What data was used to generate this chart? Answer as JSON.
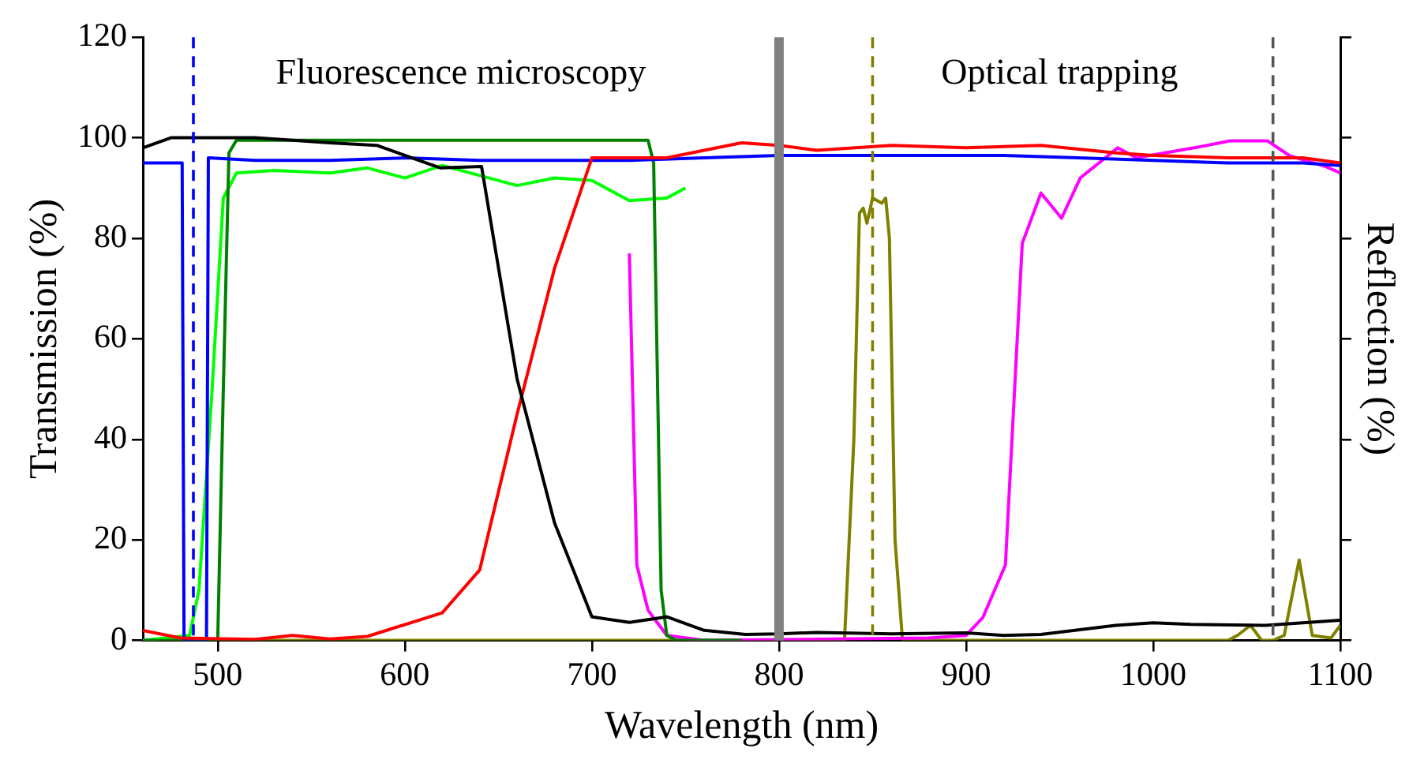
{
  "chart_data": {
    "type": "line",
    "xlabel": "Wavelength (nm)",
    "ylabel": "Transmission (%)",
    "y2label": "Reflection (%)",
    "xlim": [
      460,
      1100
    ],
    "xticks": [
      500,
      600,
      700,
      800,
      900,
      1000,
      1100
    ],
    "ylim": [
      0,
      120
    ],
    "yticks": [
      0,
      20,
      40,
      60,
      80,
      100,
      120
    ],
    "grid": false,
    "legend": false,
    "marker": "none",
    "line_style": "solid",
    "annotations": [
      "Fluorescence microscopy",
      "Optical trapping"
    ],
    "ref_lines": [
      {
        "axis": "x",
        "value": 487,
        "color": "#0000ff",
        "line_style": "dashed"
      },
      {
        "axis": "x",
        "value": 800,
        "color": "#808080",
        "line_style": "solid"
      },
      {
        "axis": "x",
        "value": 850,
        "color": "#808000",
        "line_style": "dashed"
      },
      {
        "axis": "x",
        "value": 1064,
        "color": "#555555",
        "line_style": "dashed"
      }
    ],
    "series": [
      {
        "color": "#000000",
        "x": [
          460,
          475,
          520,
          560,
          585,
          619,
          641,
          660,
          680,
          700,
          720,
          740,
          760,
          782,
          800,
          820,
          860,
          900,
          920,
          940,
          980,
          1000,
          1020,
          1060,
          1080,
          1100
        ],
        "values": [
          98,
          100,
          100,
          99,
          98.5,
          94,
          94.3,
          52,
          23.4,
          4.7,
          3.6,
          4.7,
          2,
          1.2,
          1.3,
          1.6,
          1.3,
          1.5,
          1,
          1.2,
          3,
          3.5,
          3.2,
          3,
          3.5,
          4
        ]
      },
      {
        "color": "#ff0000",
        "x": [
          460,
          480,
          520,
          540,
          560,
          580,
          620,
          640,
          660,
          680,
          700,
          720,
          740,
          760,
          780,
          800,
          820,
          860,
          900,
          940,
          980,
          1000,
          1040,
          1080,
          1100
        ],
        "values": [
          2,
          0.5,
          0.2,
          1,
          0.3,
          0.8,
          5.5,
          14,
          45,
          74,
          96,
          96,
          96,
          97.5,
          99,
          98.5,
          97.5,
          98.5,
          98,
          98.5,
          97,
          96.5,
          96,
          96,
          95
        ]
      },
      {
        "color": "#0000ff",
        "x": [
          460,
          481,
          482,
          494,
          495,
          520,
          560,
          600,
          640,
          680,
          720,
          760,
          800,
          840,
          880,
          920,
          960,
          1000,
          1040,
          1080,
          1100
        ],
        "values": [
          95,
          95,
          0,
          0,
          96,
          95.5,
          95.5,
          96,
          95.5,
          95.5,
          95.5,
          96,
          96.5,
          96.5,
          96.5,
          96.5,
          96,
          95.5,
          95,
          95,
          94.5
        ]
      },
      {
        "color": "#008000",
        "x": [
          460,
          500,
          503,
          506,
          510,
          540,
          580,
          620,
          660,
          700,
          730,
          733,
          737,
          740,
          745,
          780
        ],
        "values": [
          0,
          0,
          50,
          97,
          99.5,
          99.5,
          99.5,
          99.5,
          99.5,
          99.5,
          99.5,
          95,
          10,
          1,
          0,
          0
        ]
      },
      {
        "color": "#00ff00",
        "x": [
          460,
          485,
          490,
          497,
          503,
          510,
          530,
          560,
          580,
          600,
          620,
          640,
          660,
          680,
          700,
          720,
          740,
          750
        ],
        "values": [
          0,
          1,
          10,
          50,
          88,
          93,
          93.5,
          93,
          94,
          92,
          94.5,
          92.5,
          90.5,
          92,
          91.5,
          87.5,
          88,
          90
        ]
      },
      {
        "color": "#ff00ff",
        "x": [
          720,
          724,
          730,
          740,
          760,
          880,
          900,
          909,
          921,
          930,
          940,
          951,
          961,
          981,
          991,
          1022,
          1041,
          1061,
          1073,
          1092,
          1100
        ],
        "values": [
          77,
          15,
          6,
          1,
          0,
          0.5,
          1,
          4.6,
          15,
          79,
          89,
          84,
          92,
          98,
          96,
          98,
          99.4,
          99.4,
          96.4,
          94.3,
          93
        ]
      },
      {
        "color": "#808000",
        "x": [
          460,
          835,
          840,
          843,
          845,
          847,
          850,
          855,
          857,
          859,
          862,
          866,
          1040,
          1045,
          1052,
          1058,
          1064,
          1070,
          1078,
          1085,
          1095,
          1100
        ],
        "values": [
          0,
          0,
          40,
          85,
          86,
          83,
          88,
          87,
          88,
          80,
          20,
          0,
          0,
          1,
          3,
          0,
          0,
          1,
          16,
          1,
          0.5,
          3
        ]
      }
    ]
  }
}
